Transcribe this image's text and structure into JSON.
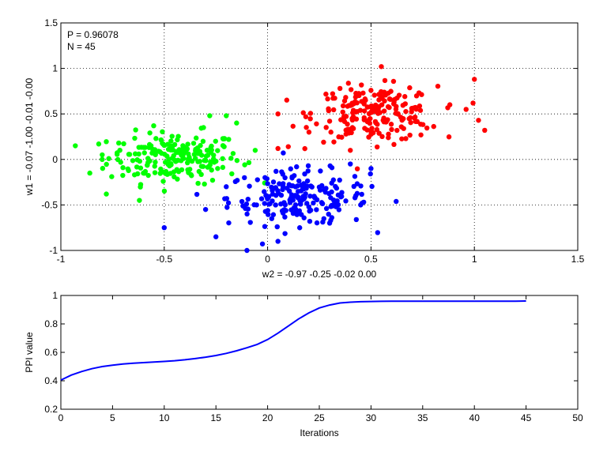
{
  "chart_data": [
    {
      "type": "scatter",
      "title": "",
      "xlabel": "w2 = -0.97  -0.25  -0.02  0.00",
      "ylabel": "w1 = -0.07  -1.00  -0.01  -0.00",
      "xlim": [
        -1,
        1.5
      ],
      "ylim": [
        -1,
        1.5
      ],
      "xticks": [
        "-1",
        "-0.5",
        "0",
        "0.5",
        "1",
        "1.5"
      ],
      "yticks": [
        "-1",
        "-0.5",
        "0",
        "0.5",
        "1",
        "1.5"
      ],
      "grid": true,
      "annotations": [
        "P = 0.96078",
        "N = 45"
      ],
      "clusters": [
        {
          "color": "#00ff00",
          "center": [
            -0.45,
            0.02
          ],
          "spread": [
            0.16,
            0.14
          ],
          "count": 200
        },
        {
          "color": "#0000ff",
          "center": [
            0.15,
            -0.42
          ],
          "spread": [
            0.17,
            0.15
          ],
          "count": 200
        },
        {
          "color": "#ff0000",
          "center": [
            0.52,
            0.5
          ],
          "spread": [
            0.15,
            0.15
          ],
          "count": 200
        }
      ],
      "series": [
        {
          "color": "#00ff00",
          "x": [
            -0.93,
            -0.86,
            -0.8,
            -0.78,
            -0.72,
            -0.8,
            -0.28,
            -0.2,
            -0.15,
            -0.06,
            -0.31,
            -0.62
          ],
          "y": [
            0.15,
            -0.15,
            0.0,
            -0.38,
            0.18,
            0.05,
            0.48,
            0.48,
            0.4,
            0.1,
            0.35,
            -0.45
          ]
        },
        {
          "color": "#0000ff",
          "x": [
            -0.3,
            -0.5,
            -0.25,
            -0.1,
            0.05,
            0.45,
            0.5,
            0.4,
            0.3,
            -0.2,
            0.02
          ],
          "y": [
            -0.55,
            -0.75,
            -0.85,
            -1.0,
            -0.9,
            -0.5,
            -0.1,
            -0.05,
            -0.7,
            -0.3,
            -0.65
          ]
        },
        {
          "color": "#ff0000",
          "x": [
            0.05,
            0.05,
            0.1,
            0.2,
            1.0,
            1.02,
            1.05,
            0.96,
            0.55,
            0.35,
            0.3,
            0.4
          ],
          "y": [
            0.5,
            0.12,
            0.14,
            0.3,
            0.88,
            0.43,
            0.32,
            0.55,
            1.02,
            0.78,
            0.42,
            0.1
          ]
        }
      ]
    },
    {
      "type": "line",
      "title": "",
      "xlabel": "Iterations",
      "ylabel": "PPI value",
      "xlim": [
        0,
        50
      ],
      "ylim": [
        0.2,
        1
      ],
      "xticks": [
        "0",
        "5",
        "10",
        "15",
        "20",
        "25",
        "30",
        "35",
        "40",
        "45",
        "50"
      ],
      "yticks": [
        "0.2",
        "0.4",
        "0.6",
        "0.8",
        "1"
      ],
      "grid": false,
      "series": [
        {
          "color": "#0000ff",
          "x": [
            0,
            1,
            2,
            3,
            4,
            5,
            6,
            7,
            8,
            9,
            10,
            11,
            12,
            13,
            14,
            15,
            16,
            17,
            18,
            19,
            20,
            21,
            22,
            23,
            24,
            25,
            26,
            27,
            28,
            29,
            30,
            31,
            32,
            33,
            34,
            35,
            36,
            37,
            38,
            39,
            40,
            41,
            42,
            43,
            44,
            45
          ],
          "y": [
            0.405,
            0.44,
            0.465,
            0.485,
            0.5,
            0.51,
            0.518,
            0.524,
            0.528,
            0.532,
            0.536,
            0.541,
            0.548,
            0.556,
            0.566,
            0.578,
            0.593,
            0.611,
            0.632,
            0.656,
            0.69,
            0.735,
            0.785,
            0.835,
            0.878,
            0.912,
            0.933,
            0.947,
            0.953,
            0.956,
            0.958,
            0.959,
            0.96,
            0.96,
            0.96,
            0.96,
            0.96,
            0.96,
            0.96,
            0.96,
            0.96,
            0.96,
            0.96,
            0.96,
            0.96,
            0.961
          ]
        }
      ]
    }
  ]
}
